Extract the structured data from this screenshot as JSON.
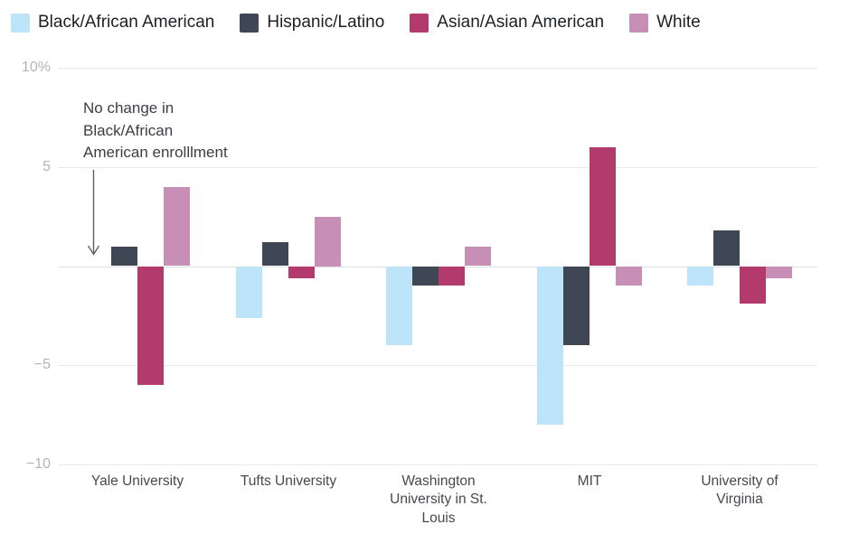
{
  "chart_data": {
    "type": "bar",
    "title": "",
    "unit": "percentage points",
    "categories": [
      "Yale University",
      "Tufts University",
      "Washington University in St. Louis",
      "MIT",
      "University of Virginia"
    ],
    "category_label_lines": [
      [
        "Yale University"
      ],
      [
        "Tufts University"
      ],
      [
        "Washington",
        "University in St.",
        "Louis"
      ],
      [
        "MIT"
      ],
      [
        "University of",
        "Virginia"
      ]
    ],
    "series": [
      {
        "name": "Black/African American",
        "color": "#bee4f9",
        "values": [
          0,
          -2.6,
          -4,
          -8,
          -1
        ]
      },
      {
        "name": "Hispanic/Latino",
        "color": "#3f4755",
        "values": [
          1,
          1.2,
          -1,
          -4,
          1.8
        ]
      },
      {
        "name": "Asian/Asian American",
        "color": "#b23a6d",
        "values": [
          -6,
          -0.6,
          -1,
          6,
          -1.9
        ]
      },
      {
        "name": "White",
        "color": "#c88fb6",
        "values": [
          4,
          2.5,
          1,
          -1,
          -0.6
        ]
      }
    ],
    "y_ticks": [
      {
        "value": 10,
        "label": "10%"
      },
      {
        "value": 5,
        "label": "5"
      },
      {
        "value": 0,
        "label": ""
      },
      {
        "value": -5,
        "label": "−5"
      },
      {
        "value": -10,
        "label": "−10"
      }
    ],
    "ylim": [
      -10,
      10
    ],
    "grid": true,
    "legend_position": "top",
    "annotation_text": "No change in Black/African American enrolllment"
  },
  "annotation": {
    "lines": [
      "No change in",
      "Black/African",
      "American enrolllment"
    ]
  }
}
